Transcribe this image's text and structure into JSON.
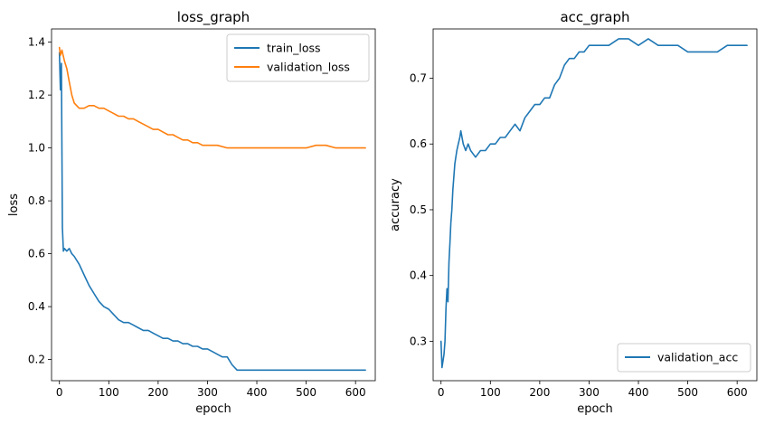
{
  "chart_data": [
    {
      "type": "line",
      "title": "loss_graph",
      "xlabel": "epoch",
      "ylabel": "loss",
      "xlim": [
        -16,
        640
      ],
      "ylim": [
        0.12,
        1.45
      ],
      "xticks": [
        0,
        100,
        200,
        300,
        400,
        500,
        600
      ],
      "yticks": [
        0.2,
        0.4,
        0.6,
        0.8,
        1.0,
        1.2,
        1.4
      ],
      "xtick_labels": [
        "0",
        "100",
        "200",
        "300",
        "400",
        "500",
        "600"
      ],
      "ytick_labels": [
        "0.2",
        "0.4",
        "0.6",
        "0.8",
        "1.0",
        "1.2",
        "1.4"
      ],
      "grid": false,
      "legend_position": "top-right",
      "series": [
        {
          "name": "train_loss",
          "color": "#1f77b4",
          "x": [
            0,
            2,
            4,
            6,
            8,
            10,
            15,
            20,
            25,
            30,
            40,
            50,
            60,
            70,
            80,
            90,
            100,
            110,
            120,
            130,
            140,
            150,
            160,
            170,
            180,
            190,
            200,
            210,
            220,
            230,
            240,
            250,
            260,
            270,
            280,
            290,
            300,
            310,
            320,
            330,
            340,
            350,
            360,
            380,
            400,
            420,
            440,
            460,
            480,
            500,
            520,
            540,
            560,
            580,
            600,
            620
          ],
          "y": [
            1.36,
            1.22,
            1.32,
            0.7,
            0.61,
            0.62,
            0.61,
            0.62,
            0.6,
            0.59,
            0.56,
            0.52,
            0.48,
            0.45,
            0.42,
            0.4,
            0.39,
            0.37,
            0.35,
            0.34,
            0.34,
            0.33,
            0.32,
            0.31,
            0.31,
            0.3,
            0.29,
            0.28,
            0.28,
            0.27,
            0.27,
            0.26,
            0.26,
            0.25,
            0.25,
            0.24,
            0.24,
            0.23,
            0.22,
            0.21,
            0.21,
            0.18,
            0.16,
            0.16,
            0.16,
            0.16,
            0.16,
            0.16,
            0.16,
            0.16,
            0.16,
            0.16,
            0.16,
            0.16,
            0.16,
            0.16
          ]
        },
        {
          "name": "validation_loss",
          "color": "#ff7f0e",
          "x": [
            0,
            2,
            5,
            10,
            15,
            20,
            25,
            30,
            35,
            40,
            50,
            60,
            70,
            80,
            90,
            100,
            110,
            120,
            130,
            140,
            150,
            160,
            170,
            180,
            190,
            200,
            210,
            220,
            230,
            240,
            250,
            260,
            270,
            280,
            290,
            300,
            320,
            340,
            360,
            380,
            400,
            420,
            440,
            460,
            480,
            500,
            520,
            540,
            560,
            580,
            600,
            620
          ],
          "y": [
            1.38,
            1.35,
            1.37,
            1.33,
            1.3,
            1.25,
            1.2,
            1.17,
            1.16,
            1.15,
            1.15,
            1.16,
            1.16,
            1.15,
            1.15,
            1.14,
            1.13,
            1.12,
            1.12,
            1.11,
            1.11,
            1.1,
            1.09,
            1.08,
            1.07,
            1.07,
            1.06,
            1.05,
            1.05,
            1.04,
            1.03,
            1.03,
            1.02,
            1.02,
            1.01,
            1.01,
            1.01,
            1.0,
            1.0,
            1.0,
            1.0,
            1.0,
            1.0,
            1.0,
            1.0,
            1.0,
            1.01,
            1.01,
            1.0,
            1.0,
            1.0,
            1.0
          ]
        }
      ]
    },
    {
      "type": "line",
      "title": "acc_graph",
      "xlabel": "epoch",
      "ylabel": "accuracy",
      "xlim": [
        -16,
        640
      ],
      "ylim": [
        0.24,
        0.775
      ],
      "xticks": [
        0,
        100,
        200,
        300,
        400,
        500,
        600
      ],
      "yticks": [
        0.3,
        0.4,
        0.5,
        0.6,
        0.7
      ],
      "xtick_labels": [
        "0",
        "100",
        "200",
        "300",
        "400",
        "500",
        "600"
      ],
      "ytick_labels": [
        "0.3",
        "0.4",
        "0.5",
        "0.6",
        "0.7"
      ],
      "grid": false,
      "legend_position": "bottom-right",
      "series": [
        {
          "name": "validation_acc",
          "color": "#1f77b4",
          "x": [
            0,
            2,
            4,
            6,
            8,
            10,
            12,
            14,
            16,
            18,
            20,
            22,
            24,
            26,
            28,
            30,
            32,
            35,
            38,
            40,
            45,
            50,
            55,
            60,
            70,
            80,
            90,
            100,
            110,
            120,
            130,
            140,
            150,
            160,
            170,
            180,
            190,
            200,
            210,
            220,
            230,
            240,
            250,
            260,
            270,
            280,
            290,
            300,
            320,
            340,
            360,
            380,
            400,
            420,
            440,
            460,
            480,
            500,
            520,
            540,
            560,
            580,
            600,
            620
          ],
          "y": [
            0.3,
            0.26,
            0.27,
            0.28,
            0.3,
            0.35,
            0.38,
            0.36,
            0.42,
            0.45,
            0.48,
            0.5,
            0.53,
            0.55,
            0.57,
            0.58,
            0.59,
            0.6,
            0.61,
            0.62,
            0.6,
            0.59,
            0.6,
            0.59,
            0.58,
            0.59,
            0.59,
            0.6,
            0.6,
            0.61,
            0.61,
            0.62,
            0.63,
            0.62,
            0.64,
            0.65,
            0.66,
            0.66,
            0.67,
            0.67,
            0.69,
            0.7,
            0.72,
            0.73,
            0.73,
            0.74,
            0.74,
            0.75,
            0.75,
            0.75,
            0.76,
            0.76,
            0.75,
            0.76,
            0.75,
            0.75,
            0.75,
            0.74,
            0.74,
            0.74,
            0.74,
            0.75,
            0.75,
            0.75
          ]
        }
      ]
    }
  ]
}
